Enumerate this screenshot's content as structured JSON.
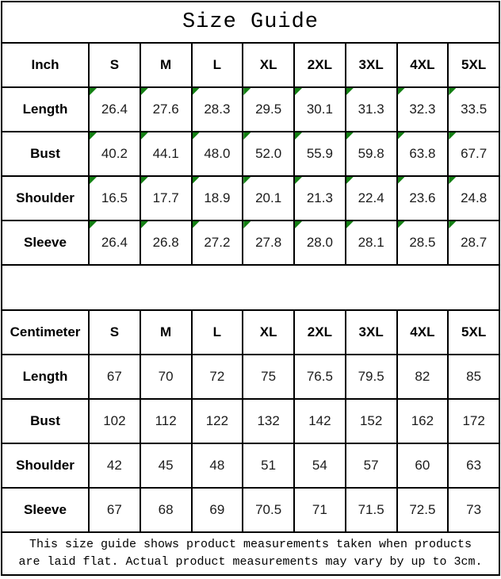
{
  "title": "Size Guide",
  "sizes": [
    "S",
    "M",
    "L",
    "XL",
    "2XL",
    "3XL",
    "4XL",
    "5XL"
  ],
  "sections": [
    {
      "unit_label": "Inch",
      "flagged": true,
      "rows": [
        {
          "label": "Length",
          "values": [
            "26.4",
            "27.6",
            "28.3",
            "29.5",
            "30.1",
            "31.3",
            "32.3",
            "33.5"
          ]
        },
        {
          "label": "Bust",
          "values": [
            "40.2",
            "44.1",
            "48.0",
            "52.0",
            "55.9",
            "59.8",
            "63.8",
            "67.7"
          ]
        },
        {
          "label": "Shoulder",
          "values": [
            "16.5",
            "17.7",
            "18.9",
            "20.1",
            "21.3",
            "22.4",
            "23.6",
            "24.8"
          ]
        },
        {
          "label": "Sleeve",
          "values": [
            "26.4",
            "26.8",
            "27.2",
            "27.8",
            "28.0",
            "28.1",
            "28.5",
            "28.7"
          ]
        }
      ]
    },
    {
      "unit_label": "Centimeter",
      "flagged": false,
      "rows": [
        {
          "label": "Length",
          "values": [
            "67",
            "70",
            "72",
            "75",
            "76.5",
            "79.5",
            "82",
            "85"
          ]
        },
        {
          "label": "Bust",
          "values": [
            "102",
            "112",
            "122",
            "132",
            "142",
            "152",
            "162",
            "172"
          ]
        },
        {
          "label": "Shoulder",
          "values": [
            "42",
            "45",
            "48",
            "51",
            "54",
            "57",
            "60",
            "63"
          ]
        },
        {
          "label": "Sleeve",
          "values": [
            "67",
            "68",
            "69",
            "70.5",
            "71",
            "71.5",
            "72.5",
            "73"
          ]
        }
      ]
    }
  ],
  "footer": {
    "line1": "This size guide shows product measurements taken when products",
    "line2": "are laid flat. Actual product measurements may vary by up to 3cm."
  },
  "colors": {
    "flag_green": "#148014",
    "grid_black": "#000000"
  }
}
